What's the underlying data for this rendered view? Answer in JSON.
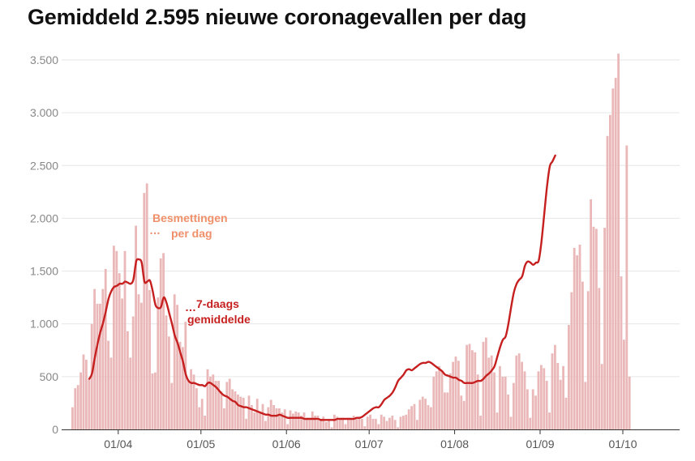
{
  "title": "Gemiddeld 2.595 nieuwe coronagevallen per dag",
  "colors": {
    "bars": "#eab8b8",
    "line": "#c61f1f",
    "annotation_daily": "#f0906a",
    "annotation_avg": "#c61f1f",
    "grid": "#e6e6e6"
  },
  "annotations": {
    "daily_line1": "Besmettingen",
    "daily_line2": "per dag",
    "avg_line1": "7-daags",
    "avg_line2": "gemiddelde"
  },
  "chart_data": {
    "type": "bar",
    "overlay": "line",
    "title": "Gemiddeld 2.595 nieuwe coronagevallen per dag",
    "ylim": [
      0,
      3500
    ],
    "yticks": [
      0,
      500,
      1000,
      1500,
      2000,
      2500,
      3000,
      3500
    ],
    "ytick_labels": [
      "0",
      "500",
      "1.000",
      "1.500",
      "2.000",
      "2.500",
      "3.000",
      "3.500"
    ],
    "xticks": [
      {
        "day": 17,
        "label": "01/04"
      },
      {
        "day": 47,
        "label": "01/05"
      },
      {
        "day": 78,
        "label": "01/06"
      },
      {
        "day": 108,
        "label": "01/07"
      },
      {
        "day": 139,
        "label": "01/08"
      },
      {
        "day": 170,
        "label": "01/09"
      },
      {
        "day": 200,
        "label": "01/10"
      }
    ],
    "grid": true,
    "daily_series": {
      "name": "Besmettingen per dag",
      "values": [
        210,
        390,
        420,
        540,
        710,
        660,
        480,
        1000,
        1330,
        1190,
        1190,
        1330,
        1520,
        840,
        680,
        1740,
        1690,
        1480,
        1240,
        1690,
        930,
        680,
        1070,
        1930,
        1280,
        1200,
        2240,
        2330,
        1320,
        530,
        540,
        1250,
        1620,
        1670,
        1080,
        880,
        440,
        1280,
        1180,
        830,
        780,
        1020,
        470,
        570,
        520,
        390,
        210,
        290,
        130,
        570,
        500,
        520,
        460,
        460,
        360,
        200,
        450,
        480,
        380,
        360,
        330,
        310,
        300,
        100,
        320,
        230,
        160,
        290,
        170,
        240,
        80,
        210,
        280,
        230,
        200,
        200,
        160,
        190,
        50,
        180,
        150,
        170,
        160,
        130,
        160,
        110,
        100,
        170,
        130,
        130,
        100,
        120,
        70,
        100,
        20,
        140,
        120,
        100,
        110,
        50,
        110,
        100,
        130,
        110,
        110,
        100,
        30,
        120,
        140,
        100,
        100,
        50,
        140,
        120,
        80,
        110,
        130,
        90,
        20,
        120,
        130,
        140,
        190,
        220,
        240,
        90,
        280,
        310,
        290,
        230,
        210,
        500,
        550,
        600,
        560,
        350,
        350,
        530,
        640,
        690,
        650,
        320,
        270,
        800,
        810,
        750,
        730,
        520,
        130,
        830,
        870,
        680,
        700,
        540,
        160,
        600,
        500,
        500,
        330,
        120,
        440,
        700,
        720,
        640,
        550,
        380,
        110,
        380,
        320,
        550,
        610,
        580,
        460,
        160,
        720,
        800,
        630,
        470,
        600,
        300,
        990,
        1300,
        1720,
        1650,
        1750,
        1400,
        450,
        1310,
        2180,
        1920,
        1900,
        1340,
        620,
        1910,
        2780,
        2980,
        3230,
        3330,
        3560,
        1450,
        850,
        2690,
        500
      ]
    },
    "avg_series": {
      "name": "7-daags gemiddelde",
      "start_day": 6,
      "values": [
        480,
        530,
        680,
        810,
        920,
        1010,
        1120,
        1240,
        1310,
        1350,
        1360,
        1380,
        1380,
        1400,
        1390,
        1380,
        1420,
        1590,
        1610,
        1580,
        1400,
        1400,
        1410,
        1310,
        1180,
        1150,
        1160,
        1250,
        1200,
        1100,
        1000,
        890,
        820,
        730,
        640,
        520,
        460,
        440,
        440,
        430,
        420,
        420,
        410,
        440,
        440,
        420,
        400,
        370,
        340,
        320,
        310,
        290,
        270,
        260,
        230,
        220,
        210,
        210,
        200,
        190,
        180,
        170,
        160,
        150,
        140,
        140,
        130,
        130,
        130,
        140,
        130,
        120,
        110,
        110,
        110,
        110,
        110,
        110,
        100,
        100,
        100,
        100,
        100,
        100,
        90,
        90,
        90,
        90,
        90,
        90,
        100,
        100,
        100,
        100,
        100,
        100,
        100,
        110,
        110,
        120,
        140,
        160,
        180,
        200,
        210,
        210,
        240,
        280,
        300,
        320,
        350,
        400,
        460,
        490,
        520,
        560,
        570,
        560,
        580,
        600,
        620,
        630,
        630,
        640,
        630,
        610,
        590,
        570,
        550,
        520,
        510,
        500,
        490,
        490,
        470,
        460,
        440,
        440,
        440,
        440,
        450,
        460,
        460,
        480,
        510,
        530,
        560,
        600,
        690,
        780,
        850,
        880,
        1000,
        1160,
        1300,
        1380,
        1420,
        1450,
        1550,
        1590,
        1580,
        1560,
        1580,
        1600,
        1780,
        2040,
        2300,
        2490,
        2540,
        2595
      ]
    }
  }
}
